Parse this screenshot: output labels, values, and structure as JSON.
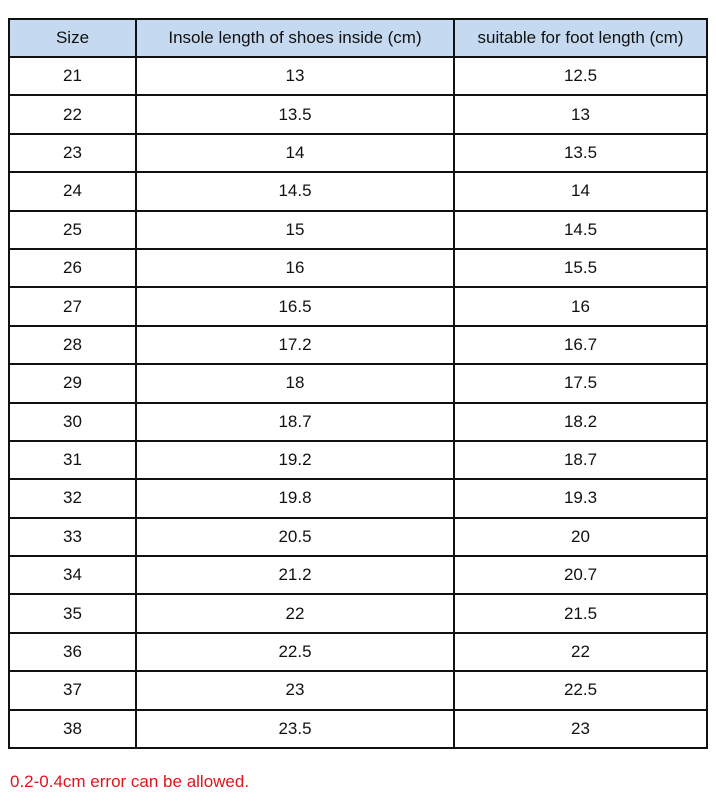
{
  "table": {
    "headers": [
      "Size",
      "Insole length of shoes inside (cm)",
      "suitable for foot length (cm)"
    ],
    "rows": [
      [
        "21",
        "13",
        "12.5"
      ],
      [
        "22",
        "13.5",
        "13"
      ],
      [
        "23",
        "14",
        "13.5"
      ],
      [
        "24",
        "14.5",
        "14"
      ],
      [
        "25",
        "15",
        "14.5"
      ],
      [
        "26",
        "16",
        "15.5"
      ],
      [
        "27",
        "16.5",
        "16"
      ],
      [
        "28",
        "17.2",
        "16.7"
      ],
      [
        "29",
        "18",
        "17.5"
      ],
      [
        "30",
        "18.7",
        "18.2"
      ],
      [
        "31",
        "19.2",
        "18.7"
      ],
      [
        "32",
        "19.8",
        "19.3"
      ],
      [
        "33",
        "20.5",
        "20"
      ],
      [
        "34",
        "21.2",
        "20.7"
      ],
      [
        "35",
        "22",
        "21.5"
      ],
      [
        "36",
        "22.5",
        "22"
      ],
      [
        "37",
        "23",
        "22.5"
      ],
      [
        "38",
        "23.5",
        "23"
      ]
    ]
  },
  "note": "0.2-0.4cm error can be allowed.",
  "colors": {
    "header_bg": "#c5d9f0",
    "note": "#e0141e"
  }
}
